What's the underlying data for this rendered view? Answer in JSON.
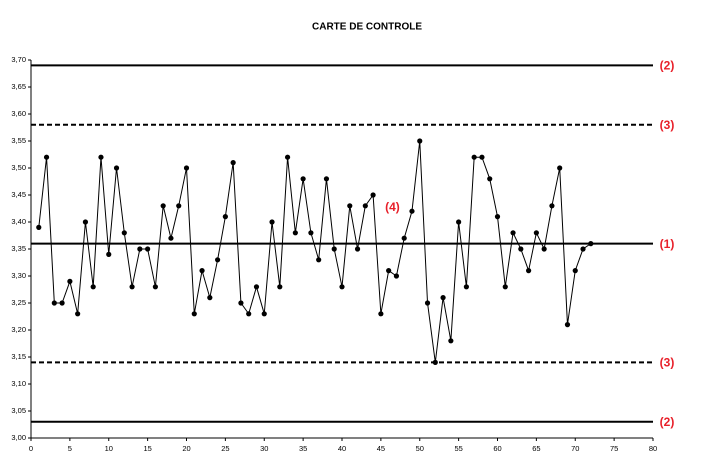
{
  "chart_data": {
    "type": "line",
    "title": "CARTE DE CONTROLE",
    "x": [
      1,
      2,
      3,
      4,
      5,
      6,
      7,
      8,
      9,
      10,
      11,
      12,
      13,
      14,
      15,
      16,
      17,
      18,
      19,
      20,
      21,
      22,
      23,
      24,
      25,
      26,
      27,
      28,
      29,
      30,
      31,
      32,
      33,
      34,
      35,
      36,
      37,
      38,
      39,
      40,
      41,
      42,
      43,
      44,
      45,
      46,
      47,
      48,
      49,
      50,
      51,
      52,
      53,
      54,
      55,
      56,
      57,
      58,
      59,
      60,
      61,
      62,
      63,
      64,
      65,
      66,
      67,
      68,
      69,
      70,
      71,
      72
    ],
    "values": [
      3.39,
      3.52,
      3.25,
      3.25,
      3.29,
      3.23,
      3.4,
      3.28,
      3.52,
      3.34,
      3.5,
      3.38,
      3.28,
      3.35,
      3.35,
      3.28,
      3.43,
      3.37,
      3.43,
      3.5,
      3.23,
      3.31,
      3.26,
      3.33,
      3.41,
      3.51,
      3.25,
      3.23,
      3.28,
      3.23,
      3.4,
      3.28,
      3.52,
      3.38,
      3.48,
      3.38,
      3.33,
      3.48,
      3.35,
      3.28,
      3.43,
      3.35,
      3.43,
      3.45,
      3.23,
      3.31,
      3.3,
      3.37,
      3.42,
      3.55,
      3.25,
      3.14,
      3.26,
      3.18,
      3.4,
      3.28,
      3.52,
      3.52,
      3.48,
      3.41,
      3.28,
      3.38,
      3.35,
      3.31,
      3.38,
      3.35,
      3.43,
      3.5,
      3.21,
      3.31,
      3.35,
      3.36
    ],
    "color": "#000000",
    "xlim": [
      0,
      80
    ],
    "xticks": [
      0,
      5,
      10,
      15,
      20,
      25,
      30,
      35,
      40,
      45,
      50,
      55,
      60,
      65,
      70,
      75,
      80
    ],
    "ylim": [
      3.0,
      3.7
    ],
    "yticks": [
      {
        "value": 3.0,
        "label": "3,00"
      },
      {
        "value": 3.05,
        "label": "3,05"
      },
      {
        "value": 3.1,
        "label": "3,10"
      },
      {
        "value": 3.15,
        "label": "3,15"
      },
      {
        "value": 3.2,
        "label": "3,20"
      },
      {
        "value": 3.25,
        "label": "3,25"
      },
      {
        "value": 3.3,
        "label": "3,30"
      },
      {
        "value": 3.35,
        "label": "3,35"
      },
      {
        "value": 3.4,
        "label": "3,40"
      },
      {
        "value": 3.45,
        "label": "3,45"
      },
      {
        "value": 3.5,
        "label": "3,50"
      },
      {
        "value": 3.55,
        "label": "3,55"
      },
      {
        "value": 3.6,
        "label": "3,60"
      },
      {
        "value": 3.65,
        "label": "3,65"
      },
      {
        "value": 3.7,
        "label": "3,70"
      }
    ],
    "reference_lines": [
      {
        "value": 3.69,
        "label": "(2)",
        "style": "solid"
      },
      {
        "value": 3.58,
        "label": "(3)",
        "style": "dashed"
      },
      {
        "value": 3.36,
        "label": "(1)",
        "style": "solid"
      },
      {
        "value": 3.14,
        "label": "(3)",
        "style": "dashed"
      },
      {
        "value": 3.03,
        "label": "(2)",
        "style": "solid"
      }
    ],
    "annotations": [
      {
        "text": "(4)",
        "x": 44,
        "y": 3.45
      }
    ]
  }
}
